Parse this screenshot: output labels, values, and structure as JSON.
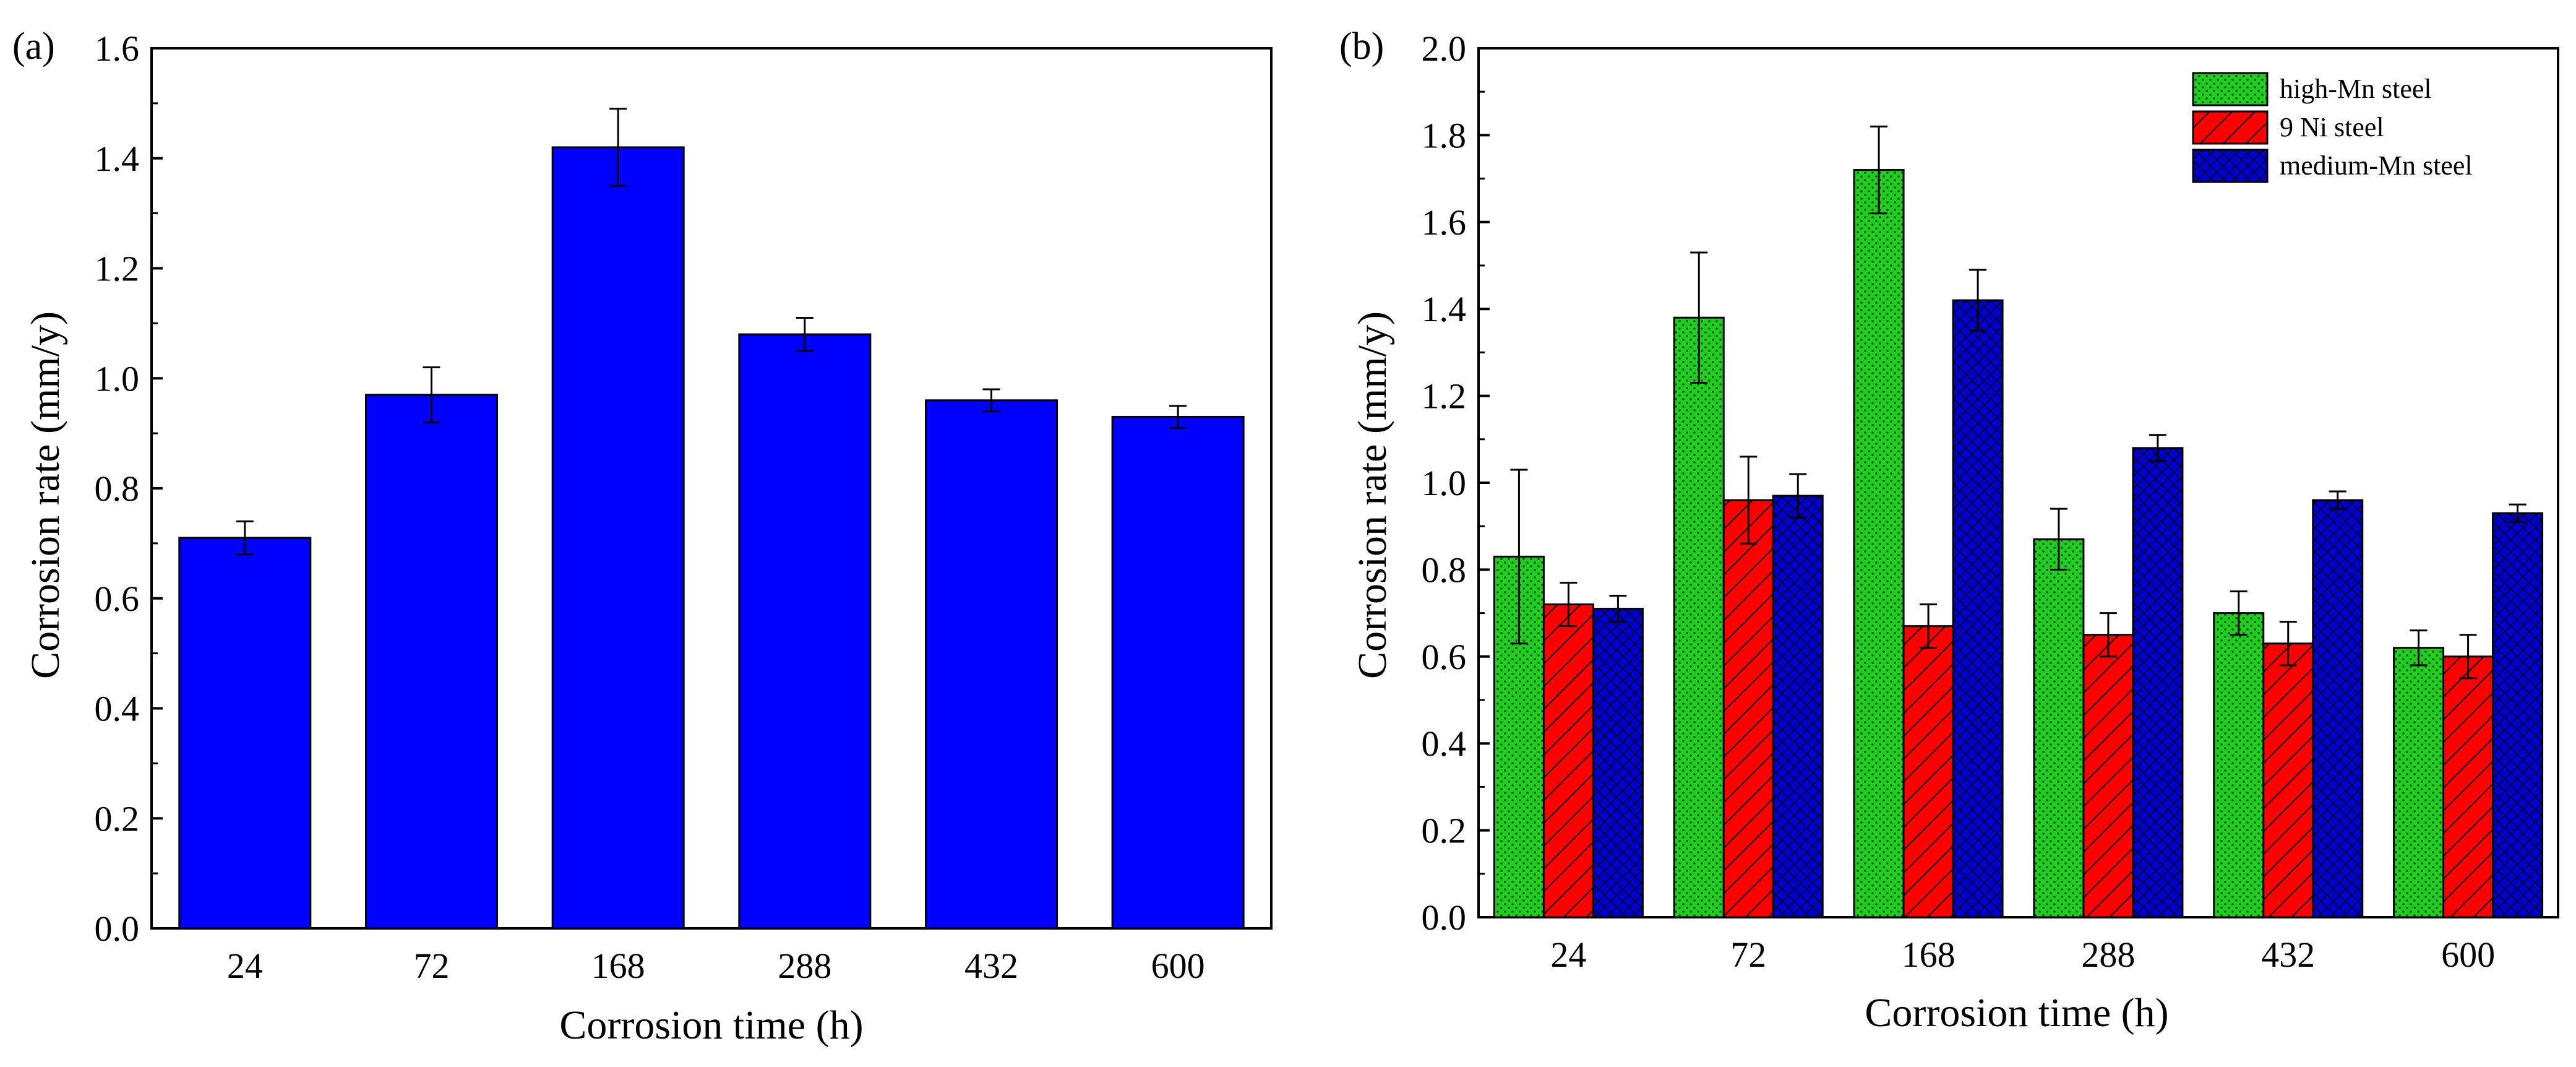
{
  "chart_data": [
    {
      "type": "bar",
      "panel_label": "(a)",
      "categories": [
        "24",
        "72",
        "168",
        "288",
        "432",
        "600"
      ],
      "series": [
        {
          "name": "medium-Mn steel",
          "values": [
            0.71,
            0.97,
            1.42,
            1.08,
            0.96,
            0.93
          ],
          "errors": [
            0.03,
            0.05,
            0.07,
            0.03,
            0.02,
            0.02
          ]
        }
      ],
      "xlabel": "Corrosion time (h)",
      "ylabel": "Corrosion rate (mm/y)",
      "ylim": [
        0,
        1.6
      ],
      "yticks": [
        "0.0",
        "0.2",
        "0.4",
        "0.6",
        "0.8",
        "1.0",
        "1.2",
        "1.4",
        "1.6"
      ],
      "colors": [
        "#0000ff"
      ]
    },
    {
      "type": "bar",
      "panel_label": "(b)",
      "categories": [
        "24",
        "72",
        "168",
        "288",
        "432",
        "600"
      ],
      "series": [
        {
          "name": "high-Mn steel",
          "values": [
            0.83,
            1.38,
            1.72,
            0.87,
            0.7,
            0.62
          ],
          "errors": [
            0.2,
            0.15,
            0.1,
            0.07,
            0.05,
            0.04
          ],
          "pattern": "dots"
        },
        {
          "name": "9 Ni steel",
          "values": [
            0.72,
            0.96,
            0.67,
            0.65,
            0.63,
            0.6
          ],
          "errors": [
            0.05,
            0.1,
            0.05,
            0.05,
            0.05,
            0.05
          ],
          "pattern": "hatch"
        },
        {
          "name": "medium-Mn steel",
          "values": [
            0.71,
            0.97,
            1.42,
            1.08,
            0.96,
            0.93
          ],
          "errors": [
            0.03,
            0.05,
            0.07,
            0.03,
            0.02,
            0.02
          ],
          "pattern": "crosshatch"
        }
      ],
      "xlabel": "Corrosion time (h)",
      "ylabel": "Corrosion rate (mm/y)",
      "ylim": [
        0,
        2.0
      ],
      "yticks": [
        "0.0",
        "0.2",
        "0.4",
        "0.6",
        "0.8",
        "1.0",
        "1.2",
        "1.4",
        "1.6",
        "1.8",
        "2.0"
      ],
      "legend_position": "top-right",
      "colors": [
        "#22cc22",
        "#ff0000",
        "#0000cc"
      ]
    }
  ]
}
